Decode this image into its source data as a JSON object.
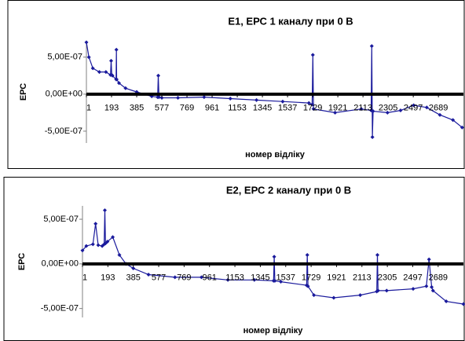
{
  "chart_data": [
    {
      "type": "line",
      "title": "E1, ЕРС 1 каналу при 0 В",
      "y_label": "ЕРС",
      "x_label": "номер відліку",
      "xlim": [
        1,
        2880
      ],
      "xticks": [
        1,
        193,
        385,
        577,
        769,
        961,
        1153,
        1345,
        1537,
        1729,
        1921,
        2113,
        2305,
        2497,
        2689
      ],
      "ylim": [
        -6.6e-07,
        7.2e-07
      ],
      "yticks": [
        {
          "value": 5e-07,
          "label": "5,00E-07"
        },
        {
          "value": 0,
          "label": "0,00E+00"
        },
        {
          "value": -5e-07,
          "label": "-5,00E-07"
        }
      ],
      "series": [
        {
          "name": "E1",
          "color": "#1a1a9c",
          "x": [
            1,
            20,
            50,
            100,
            150,
            185,
            190,
            195,
            200,
            228,
            230,
            232,
            250,
            300,
            385,
            500,
            545,
            550,
            555,
            577,
            700,
            900,
            1100,
            1300,
            1500,
            1700,
            1725,
            1730,
            1735,
            1900,
            2100,
            2175,
            2180,
            2185,
            2190,
            2300,
            2400,
            2500,
            2600,
            2700,
            2800,
            2870
          ],
          "values": [
            7e-07,
            5e-07,
            3.5e-07,
            3e-07,
            3e-07,
            2.6e-07,
            4.5e-07,
            2.6e-07,
            2.5e-07,
            2e-07,
            6e-07,
            2e-07,
            1.5e-07,
            8e-08,
            3e-08,
            -3e-08,
            -4e-08,
            2.5e-07,
            -4e-08,
            -5e-08,
            -5e-08,
            -4e-08,
            -6e-08,
            -8e-08,
            -1e-07,
            -1.2e-07,
            -1.4e-07,
            5.3e-07,
            -2e-07,
            -2.5e-07,
            -2e-07,
            -2.2e-07,
            6.5e-07,
            -5.8e-07,
            -2.3e-07,
            -2.5e-07,
            -2.2e-07,
            -1.5e-07,
            -1.8e-07,
            -2.8e-07,
            -3.5e-07,
            -4.5e-07
          ]
        }
      ]
    },
    {
      "type": "line",
      "title": "E2, ЕРС 2 каналу при 0 В",
      "y_label": "ЕРС",
      "x_label": "номер відліку",
      "xlim": [
        1,
        2880
      ],
      "xticks": [
        1,
        193,
        385,
        577,
        769,
        961,
        1153,
        1345,
        1537,
        1729,
        1921,
        2113,
        2305,
        2497,
        2689
      ],
      "ylim": [
        -6e-07,
        6.5e-07
      ],
      "yticks": [
        {
          "value": 5e-07,
          "label": "5,00E-07"
        },
        {
          "value": 0,
          "label": "0,00E+00"
        },
        {
          "value": -5e-07,
          "label": "-5,00E-07"
        }
      ],
      "series": [
        {
          "name": "E2",
          "color": "#1a1a9c",
          "x": [
            1,
            30,
            80,
            100,
            120,
            150,
            165,
            170,
            175,
            190,
            230,
            280,
            330,
            385,
            500,
            700,
            900,
            1100,
            1300,
            1445,
            1450,
            1455,
            1500,
            1695,
            1700,
            1705,
            1750,
            1900,
            2100,
            2225,
            2230,
            2235,
            2300,
            2500,
            2600,
            2620,
            2640,
            2650,
            2750,
            2880
          ],
          "values": [
            1.5e-07,
            2e-07,
            2.2e-07,
            4.5e-07,
            2.1e-07,
            2e-07,
            2.2e-07,
            6e-07,
            2.3e-07,
            2.5e-07,
            3e-07,
            1e-07,
            0.0,
            -5e-08,
            -1.2e-07,
            -1.5e-07,
            -1.5e-07,
            -1.8e-07,
            -1.8e-07,
            -1.9e-07,
            8e-08,
            -1.9e-07,
            -2e-07,
            -2.4e-07,
            1e-07,
            -2.5e-07,
            -3.5e-07,
            -3.8e-07,
            -3.5e-07,
            -3.1e-07,
            1e-07,
            -3e-07,
            -3e-07,
            -2.8e-07,
            -2.5e-07,
            5e-08,
            -2.6e-07,
            -3e-07,
            -4.2e-07,
            -4.5e-07
          ]
        }
      ]
    }
  ]
}
